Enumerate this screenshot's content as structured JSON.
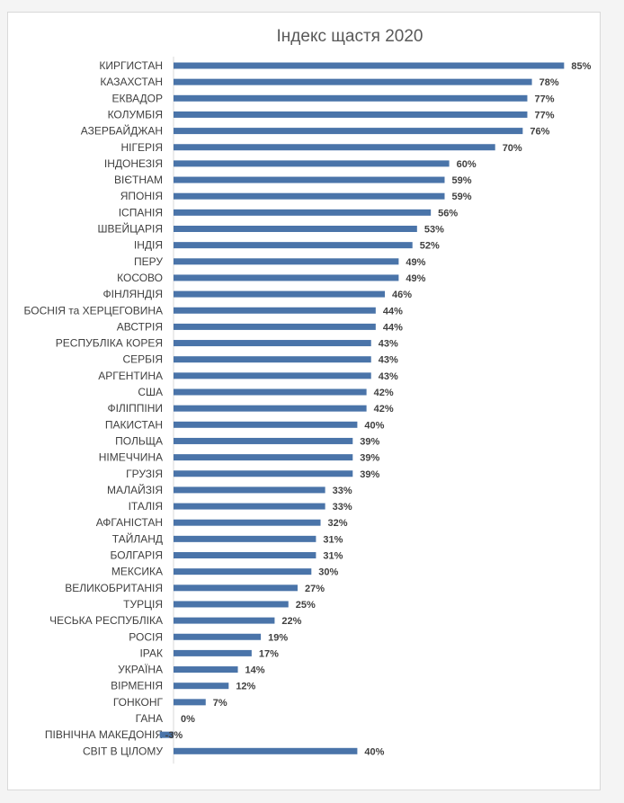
{
  "chart_data": {
    "type": "bar",
    "orientation": "horizontal",
    "title": "Індекс щастя 2020",
    "xlabel": "",
    "ylabel": "",
    "xlim": [
      -4,
      87
    ],
    "grid": false,
    "legend": "none",
    "bar_color": "#4a74a9",
    "value_suffix": "%",
    "categories": [
      "КИРГИСТАН",
      "КАЗАХСТАН",
      "ЕКВАДОР",
      "КОЛУМБІЯ",
      "АЗЕРБАЙДЖАН",
      "НІГЕРІЯ",
      "ІНДОНЕЗІЯ",
      "ВІЄТНАМ",
      "ЯПОНІЯ",
      "ІСПАНІЯ",
      "ШВЕЙЦАРІЯ",
      "ІНДІЯ",
      "ПЕРУ",
      "КОСОВО",
      "ФІНЛЯНДІЯ",
      "БОСНІЯ та ХЕРЦЕГОВИНА",
      "АВСТРІЯ",
      "РЕСПУБЛІКА КОРЕЯ",
      "СЕРБІЯ",
      "АРГЕНТИНА",
      "США",
      "ФІЛІППІНИ",
      "ПАКИСТАН",
      "ПОЛЬЩА",
      "НІМЕЧЧИНА",
      "ГРУЗІЯ",
      "МАЛАЙЗІЯ",
      "ІТАЛІЯ",
      "АФГАНІСТАН",
      "ТАЙЛАНД",
      "БОЛГАРІЯ",
      "МЕКСИКА",
      "ВЕЛИКОБРИТАНІЯ",
      "ТУРЦІЯ",
      "ЧЕСЬКА РЕСПУБЛІКА",
      "РОСІЯ",
      "ІРАК",
      "УКРАЇНА",
      "ВІРМЕНІЯ",
      "ГОНКОНГ",
      "ГАНА",
      "ПІВНІЧНА МАКЕДОНІЯ",
      "СВІТ В ЦІЛОМУ"
    ],
    "values": [
      85,
      78,
      77,
      77,
      76,
      70,
      60,
      59,
      59,
      56,
      53,
      52,
      49,
      49,
      46,
      44,
      44,
      43,
      43,
      43,
      42,
      42,
      40,
      39,
      39,
      39,
      33,
      33,
      32,
      31,
      31,
      30,
      27,
      25,
      22,
      19,
      17,
      14,
      12,
      7,
      0,
      -3,
      40
    ]
  }
}
